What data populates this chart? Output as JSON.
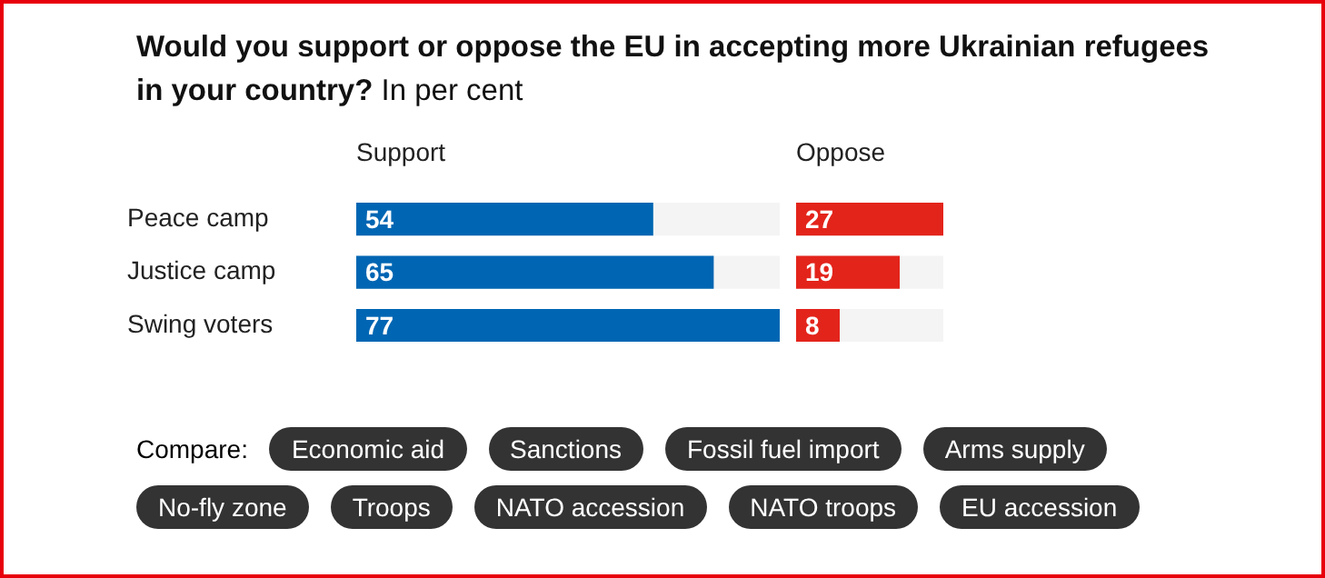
{
  "chart_data": [
    {
      "type": "bar",
      "orientation": "horizontal",
      "title": "Would you support or oppose the EU in accepting more Ukrainian refugees in your country?",
      "subtitle": "In per cent",
      "xlabel": "Support",
      "categories": [
        "Peace camp",
        "Justice camp",
        "Swing voters"
      ],
      "values": [
        54,
        65,
        77
      ],
      "color": "#0066b3",
      "xlim": [
        0,
        77
      ],
      "data_labels": true,
      "legend": false
    },
    {
      "type": "bar",
      "orientation": "horizontal",
      "xlabel": "Oppose",
      "categories": [
        null,
        null,
        null
      ],
      "values": [
        27,
        19,
        8
      ],
      "color": "#e3241b",
      "xlim": [
        0,
        27
      ],
      "data_labels": true,
      "legend": false
    },
    {
      "type": "other",
      "title": "Compare:",
      "annotations": [
        "Economic aid",
        "Sanctions",
        "Fossil fuel import",
        "Arms supply",
        "No-fly zone",
        "Troops",
        "NATO accession",
        "NATO troops",
        "EU accession"
      ]
    }
  ]
}
